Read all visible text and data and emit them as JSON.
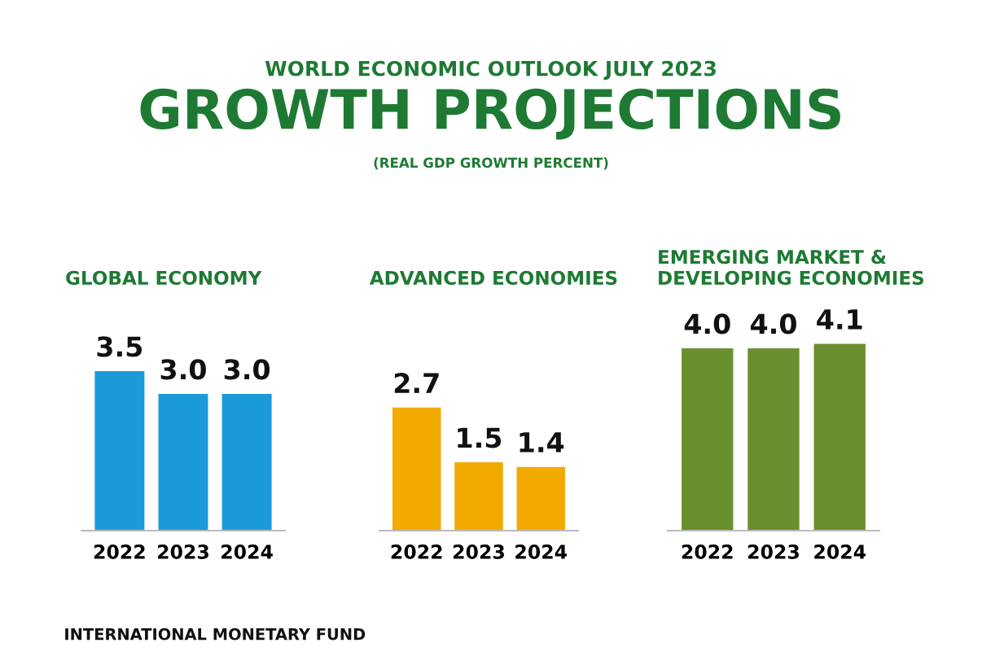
{
  "chart_data": [
    {
      "type": "bar",
      "title": "GLOBAL ECONOMY",
      "categories": [
        "2022",
        "2023",
        "2024"
      ],
      "values": [
        3.5,
        3.0,
        3.0
      ],
      "value_labels": [
        "3.5",
        "3.0",
        "3.0"
      ],
      "color": "#1a9ad6",
      "tick_labels": "x",
      "grid": false,
      "annotations": [
        "WORLD ECONOMIC OUTLOOK JULY 2023",
        "GROWTH PROJECTIONS",
        "(REAL GDP GROWTH PERCENT)",
        "INTERNATIONAL MONETARY FUND"
      ]
    },
    {
      "type": "bar",
      "title": "ADVANCED ECONOMIES",
      "categories": [
        "2022",
        "2023",
        "2024"
      ],
      "values": [
        2.7,
        1.5,
        1.4
      ],
      "value_labels": [
        "2.7",
        "1.5",
        "1.4"
      ],
      "color": "#f2a900",
      "tick_labels": "x",
      "grid": false
    },
    {
      "type": "bar",
      "title": "EMERGING MARKET &\nDEVELOPING ECONOMIES",
      "categories": [
        "2022",
        "2023",
        "2024"
      ],
      "values": [
        4.0,
        4.0,
        4.1
      ],
      "value_labels": [
        "4.0",
        "4.0",
        "4.1"
      ],
      "color": "#6a8f2f",
      "tick_labels": "x",
      "grid": false
    }
  ]
}
